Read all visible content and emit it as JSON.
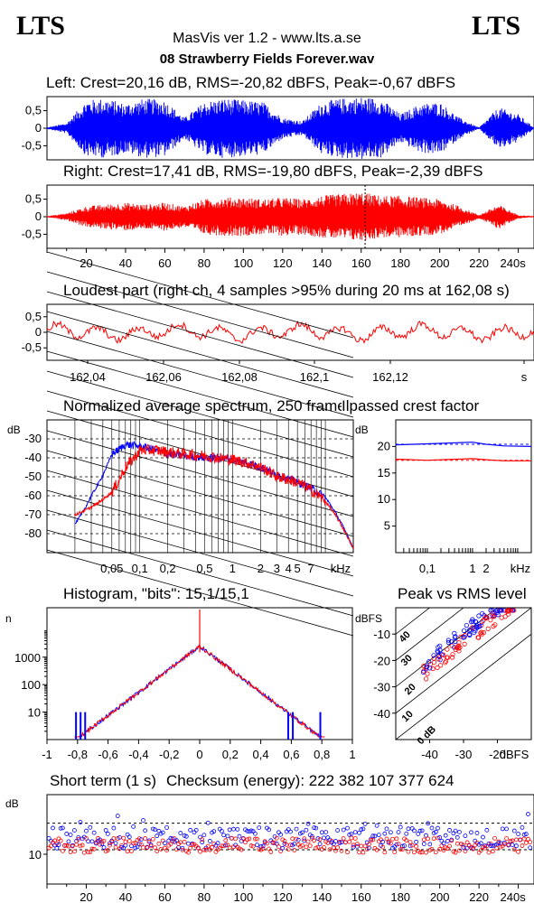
{
  "header": {
    "logo_left": "LTS",
    "logo_right": "LTS",
    "app_title": "MasVis ver 1.2 - www.lts.a.se",
    "file_name": "08 Strawberry Fields Forever.wav"
  },
  "colors": {
    "left": "#0000ff",
    "right": "#ff0000",
    "grid": "#000000"
  },
  "chart_data": [
    {
      "id": "left-waveform",
      "type": "area",
      "title": "Left: Crest=20,16 dB, RMS=-20,82 dBFS, Peak=-0,67 dBFS",
      "yticks": [
        "0,5",
        "0",
        "-0,5"
      ],
      "ylim": [
        -0.9,
        0.9
      ],
      "xlim": [
        0,
        248
      ],
      "envelope_x": [
        0,
        10,
        20,
        30,
        40,
        50,
        60,
        70,
        80,
        90,
        100,
        110,
        120,
        130,
        140,
        150,
        160,
        170,
        180,
        190,
        200,
        210,
        220,
        230,
        240,
        248
      ],
      "envelope_y": [
        0.02,
        0.15,
        0.8,
        0.85,
        0.7,
        0.85,
        0.8,
        0.3,
        0.75,
        0.85,
        0.8,
        0.75,
        0.3,
        0.2,
        0.75,
        0.85,
        0.9,
        0.85,
        0.4,
        0.7,
        0.75,
        0.3,
        0.02,
        0.6,
        0.4,
        0.02
      ]
    },
    {
      "id": "right-waveform",
      "type": "area",
      "title": "Right: Crest=17,41 dB, RMS=-19,80 dBFS, Peak=-2,39 dBFS",
      "yticks": [
        "0,5",
        "0",
        "-0,5"
      ],
      "ylim": [
        -0.9,
        0.9
      ],
      "xlim": [
        0,
        248
      ],
      "xticks": [
        "20",
        "40",
        "60",
        "80",
        "100",
        "120",
        "140",
        "160",
        "180",
        "200",
        "220",
        "240s"
      ],
      "marker_x": 162,
      "envelope_x": [
        0,
        10,
        20,
        30,
        40,
        50,
        60,
        70,
        80,
        90,
        100,
        110,
        120,
        130,
        140,
        150,
        160,
        170,
        180,
        190,
        200,
        210,
        220,
        230,
        240,
        248
      ],
      "envelope_y": [
        0.02,
        0.1,
        0.3,
        0.35,
        0.4,
        0.35,
        0.4,
        0.3,
        0.5,
        0.55,
        0.55,
        0.5,
        0.55,
        0.5,
        0.6,
        0.65,
        0.7,
        0.6,
        0.6,
        0.55,
        0.5,
        0.3,
        0.05,
        0.35,
        0.05,
        0.02
      ]
    },
    {
      "id": "loudest-part",
      "type": "line",
      "title": "Loudest part (right ch, 4 samples >95% during 20 ms at 162,08 s)",
      "yticks": [
        "0,5",
        "0",
        "-0,5"
      ],
      "ylim": [
        -0.9,
        0.9
      ],
      "xlim": [
        162.03,
        162.13
      ],
      "xticks": [
        "162,04",
        "162,06",
        "162,08",
        "162,1",
        "162,12",
        "s"
      ]
    },
    {
      "id": "spectrum",
      "type": "line",
      "title": "Normalized average spectrum, 250 frames",
      "ylabel": "dB",
      "yticks": [
        "-30",
        "-40",
        "-50",
        "-60",
        "-70",
        "-80"
      ],
      "xticks": [
        "0,05",
        "0,1",
        "0,2",
        "0,5",
        "1",
        "2",
        "3",
        "4",
        "5",
        "7",
        "kHz"
      ],
      "series": [
        {
          "x": [
            0.02,
            0.03,
            0.05,
            0.07,
            0.1,
            0.15,
            0.2,
            0.3,
            0.5,
            0.7,
            1,
            1.5,
            2,
            3,
            5,
            7,
            10,
            15,
            20
          ],
          "y": [
            -75,
            -60,
            -38,
            -33,
            -34,
            -36,
            -38,
            -39,
            -40,
            -40,
            -41,
            -43,
            -45,
            -49,
            -53,
            -56,
            -61,
            -75,
            -88
          ]
        },
        {
          "x": [
            0.02,
            0.03,
            0.05,
            0.07,
            0.1,
            0.15,
            0.2,
            0.3,
            0.5,
            0.7,
            1,
            1.5,
            2,
            3,
            5,
            7,
            10,
            15,
            20
          ],
          "y": [
            -70,
            -66,
            -58,
            -45,
            -36,
            -36,
            -37,
            -38,
            -39,
            -40,
            -41,
            -43,
            -45,
            -50,
            -53,
            -57,
            -63,
            -76,
            -88
          ]
        }
      ]
    },
    {
      "id": "crest",
      "type": "line",
      "title": "Ilpassed crest factor",
      "ylabel": "dB",
      "yticks": [
        "20",
        "15",
        "10",
        "5"
      ],
      "ylim": [
        0,
        25
      ],
      "xticks": [
        "0,1",
        "1",
        "2",
        "kHz"
      ],
      "series": [
        {
          "x": [
            0.02,
            0.1,
            1,
            2,
            5,
            20
          ],
          "y": [
            20.3,
            20.5,
            20.8,
            20.4,
            20.1,
            20.0
          ]
        },
        {
          "x": [
            0.02,
            0.1,
            1,
            2,
            5,
            20
          ],
          "y": [
            17.6,
            17.4,
            17.7,
            17.5,
            17.3,
            17.3
          ]
        }
      ]
    },
    {
      "id": "histogram",
      "type": "line",
      "title": "Histogram, \"bits\": 15,1/15,1",
      "ylabel": "n",
      "yticks": [
        "1000",
        "100",
        "10"
      ],
      "xticks": [
        "-1",
        "-0,8",
        "-0,6",
        "-0,4",
        "-0,2",
        "0",
        "0,2",
        "0,4",
        "0,6",
        "0,8",
        "1"
      ],
      "xlim": [
        -1,
        1
      ]
    },
    {
      "id": "peak-vs-rms",
      "type": "scatter",
      "title": "Peak vs RMS level",
      "ylabel": "dBFS",
      "yticks": [
        "-10",
        "-20",
        "-30",
        "-40"
      ],
      "xticks": [
        "-40",
        "-30",
        "-20",
        "dBFS"
      ],
      "diag_labels": [
        "40",
        "30",
        "20",
        "10",
        "0 dB"
      ],
      "xlim": [
        -50,
        -10
      ],
      "ylim": [
        -50,
        0
      ]
    },
    {
      "id": "short-term",
      "type": "scatter",
      "title": "Short term (1 s)",
      "checksum": "Checksum (energy):   222 382 107 377 624",
      "ylabel": "dB",
      "yticks": [
        "10"
      ],
      "xticks": [
        "20",
        "40",
        "60",
        "80",
        "100",
        "120",
        "140",
        "160",
        "180",
        "200",
        "220",
        "240s"
      ],
      "xlim": [
        0,
        248
      ],
      "ylim": [
        0,
        30
      ]
    }
  ]
}
